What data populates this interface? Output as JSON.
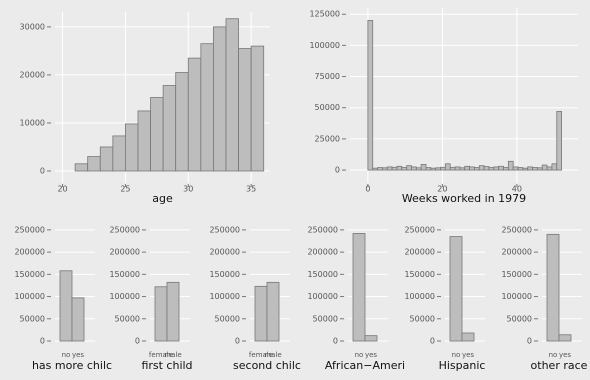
{
  "chart_data": [
    {
      "type": "histogram",
      "xlabel": "age",
      "bins": [
        21,
        22,
        23,
        24,
        25,
        26,
        27,
        28,
        29,
        30,
        31,
        32,
        33,
        34,
        35,
        36
      ],
      "values": [
        1500,
        3000,
        5000,
        7300,
        9800,
        12500,
        15300,
        17800,
        20500,
        23500,
        26500,
        30000,
        31700,
        25500,
        26000
      ],
      "xlim": [
        19.4,
        36.5
      ],
      "xticks": [
        20,
        25,
        30,
        35
      ],
      "ylim": [
        -2500,
        33100
      ],
      "yticks": [
        0,
        10000,
        20000,
        30000
      ],
      "color": "#bdbdbd",
      "grid": true
    },
    {
      "type": "histogram",
      "xlabel": "Weeks worked in 1979",
      "bins": [
        0,
        1.3,
        2.6,
        3.9,
        5.2,
        6.5,
        7.8,
        9.1,
        10.4,
        11.7,
        13,
        14.3,
        15.6,
        16.9,
        18.2,
        19.5,
        20.8,
        22.1,
        23.4,
        24.7,
        26,
        27.3,
        28.6,
        29.9,
        31.2,
        32.5,
        33.8,
        35.1,
        36.4,
        37.7,
        39,
        40.3,
        41.6,
        42.9,
        44.2,
        45.5,
        46.8,
        48.1,
        49.4,
        50.7,
        52
      ],
      "values": [
        120000,
        1500,
        2000,
        1800,
        2500,
        2200,
        3000,
        2000,
        3500,
        2500,
        1800,
        4500,
        2000,
        1500,
        1800,
        2200,
        5000,
        2000,
        2500,
        1800,
        3000,
        2500,
        2000,
        3500,
        2800,
        2000,
        2500,
        3000,
        2000,
        7000,
        2500,
        2000,
        1500,
        2500,
        2000,
        1800,
        4000,
        2500,
        5000,
        47000
      ],
      "xlim": [
        -4.8,
        56.4
      ],
      "xticks": [
        0,
        20,
        40
      ],
      "ylim": [
        -10400,
        130000
      ],
      "yticks": [
        0,
        25000,
        50000,
        75000,
        100000,
        125000
      ],
      "color": "#bdbdbd",
      "grid": true
    },
    {
      "type": "bar",
      "xlabel": "has more chilc",
      "categories": [
        "no",
        "yes"
      ],
      "values": [
        158000,
        97000
      ],
      "ylim": [
        -13500,
        261000
      ],
      "yticks": [
        0,
        50000,
        100000,
        150000,
        200000,
        250000
      ],
      "color": "#bdbdbd",
      "grid": true
    },
    {
      "type": "bar",
      "xlabel": "first child",
      "categories": [
        "female",
        "male"
      ],
      "values": [
        122000,
        132000
      ],
      "ylim": [
        -13500,
        261000
      ],
      "yticks": [
        0,
        50000,
        100000,
        150000,
        200000,
        250000
      ],
      "color": "#bdbdbd",
      "grid": true
    },
    {
      "type": "bar",
      "xlabel": "second chilc",
      "categories": [
        "female",
        "male"
      ],
      "values": [
        123000,
        132000
      ],
      "ylim": [
        -13500,
        261000
      ],
      "yticks": [
        0,
        50000,
        100000,
        150000,
        200000,
        250000
      ],
      "color": "#bdbdbd",
      "grid": true
    },
    {
      "type": "bar",
      "xlabel": "African−Ameri",
      "categories": [
        "no",
        "yes"
      ],
      "values": [
        242000,
        12000
      ],
      "ylim": [
        -13500,
        261000
      ],
      "yticks": [
        0,
        50000,
        100000,
        150000,
        200000,
        250000
      ],
      "color": "#bdbdbd",
      "grid": true
    },
    {
      "type": "bar",
      "xlabel": "Hispanic",
      "categories": [
        "no",
        "yes"
      ],
      "values": [
        235000,
        18000
      ],
      "ylim": [
        -13500,
        261000
      ],
      "yticks": [
        0,
        50000,
        100000,
        150000,
        200000,
        250000
      ],
      "color": "#bdbdbd",
      "grid": true
    },
    {
      "type": "bar",
      "xlabel": "other race",
      "categories": [
        "no",
        "yes"
      ],
      "values": [
        240000,
        14000
      ],
      "ylim": [
        -13500,
        261000
      ],
      "yticks": [
        0,
        50000,
        100000,
        150000,
        200000,
        250000
      ],
      "color": "#bdbdbd",
      "grid": true
    }
  ]
}
